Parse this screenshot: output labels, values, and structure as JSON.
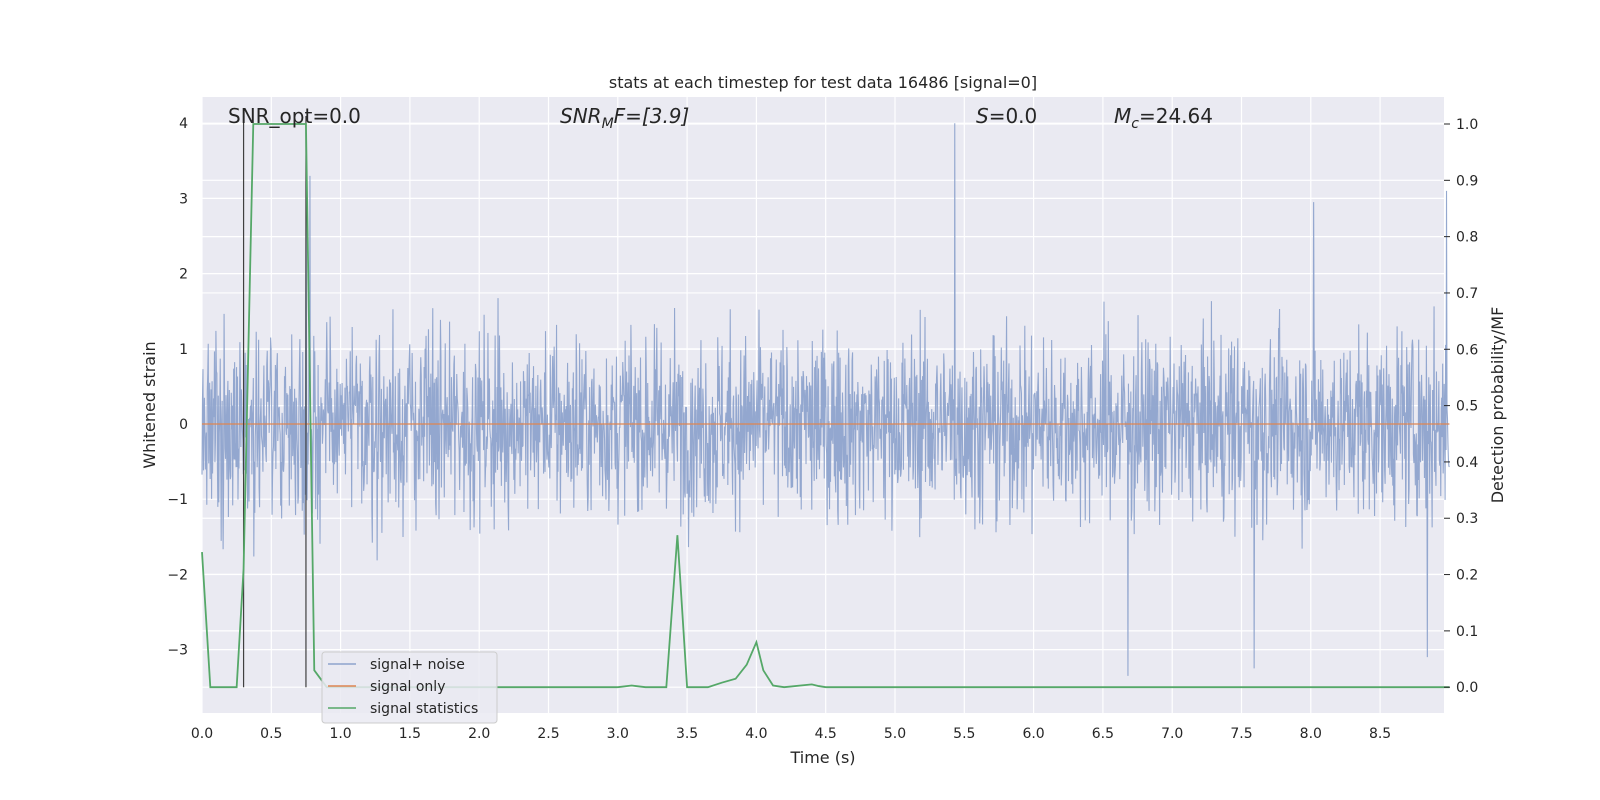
{
  "chart_data": {
    "type": "line",
    "title": "stats at each timestep for test data 16486 [signal=0]",
    "xlabel": "Time (s)",
    "ylabel_left": "Whitened strain",
    "ylabel_right": "Detection probability/MF",
    "xlim": [
      0.0,
      9.0
    ],
    "ylim_left": [
      -3.9,
      4.35
    ],
    "ylim_right": [
      -0.05,
      1.04
    ],
    "x_ticks": [
      "0.0",
      "0.5",
      "1.0",
      "1.5",
      "2.0",
      "2.5",
      "3.0",
      "3.5",
      "4.0",
      "4.5",
      "5.0",
      "5.5",
      "6.0",
      "6.5",
      "7.0",
      "7.5",
      "8.0",
      "8.5"
    ],
    "y_left_ticks": [
      "4",
      "3",
      "2",
      "1",
      "0",
      "−1",
      "−2",
      "−3"
    ],
    "y_right_ticks": [
      "1.0",
      "0.9",
      "0.8",
      "0.7",
      "0.6",
      "0.5",
      "0.4",
      "0.3",
      "0.2",
      "0.1",
      "0.0"
    ],
    "grid": true,
    "legend_position": "lower-left",
    "annotations": {
      "snr_opt": "SNR_opt=0.0",
      "snr_mf_main": "SNR",
      "snr_mf_sub": "M",
      "snr_mf_rest": "F=[3.9]",
      "s_main": "S",
      "s_rest": "=0.0",
      "mc_main": "M",
      "mc_sub": "c",
      "mc_rest": "=24.64"
    },
    "vertical_lines_x": [
      0.3,
      0.75
    ],
    "series": [
      {
        "name": "signal+ noise",
        "color": "#8ea3cc",
        "axis": "left",
        "description_range": [
          -3.6,
          4.0
        ],
        "notable_peaks": [
          {
            "x": 0.75,
            "y": 3.5
          },
          {
            "x": 0.78,
            "y": 3.3
          },
          {
            "x": 5.43,
            "y": 4.0
          },
          {
            "x": 8.02,
            "y": 2.95
          },
          {
            "x": 8.98,
            "y": 3.1
          },
          {
            "x": 6.68,
            "y": -3.35
          },
          {
            "x": 7.59,
            "y": -3.25
          },
          {
            "x": 8.84,
            "y": -3.1
          }
        ]
      },
      {
        "name": "signal only",
        "color": "#dd8452",
        "axis": "left",
        "x": [
          0.0,
          9.0
        ],
        "y": [
          0.0,
          0.0
        ]
      },
      {
        "name": "signal statistics",
        "color": "#55a868",
        "axis": "right",
        "x": [
          0.0,
          0.06,
          0.25,
          0.3,
          0.37,
          0.75,
          0.81,
          0.9,
          1.0,
          3.0,
          3.1,
          3.2,
          3.35,
          3.43,
          3.5,
          3.65,
          3.75,
          3.85,
          3.93,
          4.0,
          4.05,
          4.12,
          4.2,
          4.4,
          4.45,
          4.5,
          9.0
        ],
        "y": [
          0.24,
          0.0,
          0.0,
          0.21,
          1.0,
          1.0,
          0.03,
          0.0,
          0.0,
          0.0,
          0.003,
          0.0,
          0.0,
          0.27,
          0.0,
          0.0,
          0.008,
          0.015,
          0.04,
          0.08,
          0.03,
          0.003,
          0.0,
          0.005,
          0.002,
          0.0,
          0.0
        ]
      }
    ]
  }
}
